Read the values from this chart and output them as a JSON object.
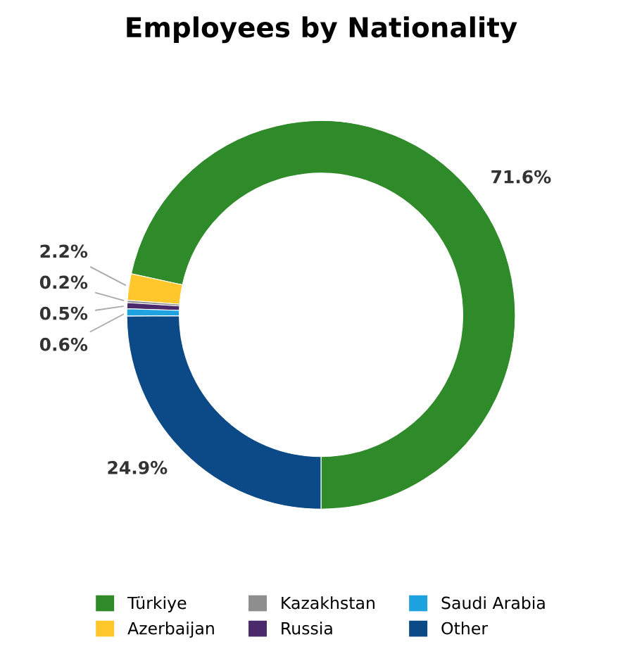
{
  "chart_data": {
    "type": "donut",
    "title": "Employees by Nationality",
    "categories": [
      "Türkiye",
      "Azerbaijan",
      "Kazakhstan",
      "Russia",
      "Saudi Arabia",
      "Other"
    ],
    "values": [
      71.6,
      2.2,
      0.2,
      0.5,
      0.6,
      24.9
    ],
    "value_labels": [
      "71.6%",
      "2.2%",
      "0.2%",
      "0.5%",
      "0.6%",
      "24.9%"
    ],
    "colors": [
      "#2f8a2a",
      "#ffc72c",
      "#8e8e8e",
      "#4a2a6a",
      "#1ea3e0",
      "#0b4a86"
    ],
    "legend": "bottom"
  }
}
